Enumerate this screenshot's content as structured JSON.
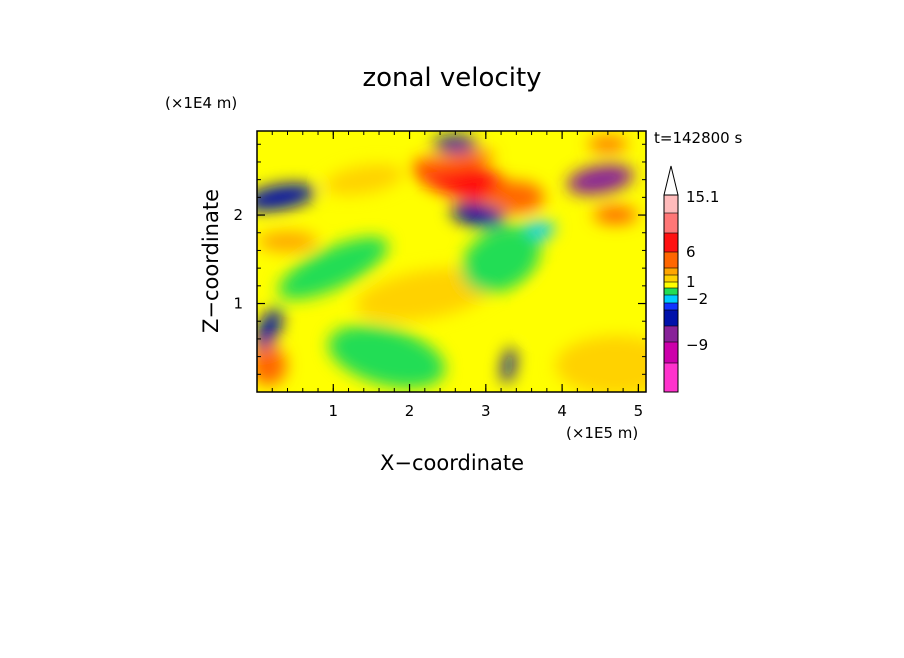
{
  "chart_data": {
    "type": "heatmap",
    "title": "zonal velocity",
    "xlabel": "X−coordinate",
    "ylabel": "Z−coordinate",
    "x_unit": "(×1E5 m)",
    "y_unit": "(×1E4 m)",
    "time_label": "t=142800 s",
    "xlim": [
      0,
      5.1
    ],
    "ylim": [
      0,
      2.95
    ],
    "x_ticks": [
      1,
      2,
      3,
      4,
      5
    ],
    "y_ticks": [
      1,
      2
    ],
    "colorbar": {
      "levels": [
        -15,
        -12,
        -9,
        -6,
        -3,
        -2,
        -1,
        0,
        1,
        2,
        3,
        6,
        9,
        12,
        15.1
      ],
      "labels": [
        "15.1",
        "6",
        "1",
        "−2",
        "−9"
      ],
      "colors": [
        "#ff33cc",
        "#cc00aa",
        "#882299",
        "#0011aa",
        "#1133ff",
        "#00ccff",
        "#22dd55",
        "#ffff00",
        "#ffd200",
        "#ffa500",
        "#ff6600",
        "#ff1111",
        "#ff7777",
        "#ffbbbb"
      ],
      "extend_top": true
    },
    "features": [
      {
        "x": 0.3,
        "z": 2.2,
        "value": -4
      },
      {
        "x": 0.4,
        "z": 1.7,
        "value": 2
      },
      {
        "x": 1.4,
        "z": 2.4,
        "value": 1.5
      },
      {
        "x": 2.7,
        "z": 2.4,
        "value": 8
      },
      {
        "x": 2.6,
        "z": 2.6,
        "value": 3
      },
      {
        "x": 2.6,
        "z": 2.8,
        "value": -4
      },
      {
        "x": 2.9,
        "z": 2.0,
        "value": -6
      },
      {
        "x": 4.5,
        "z": 2.4,
        "value": -8
      },
      {
        "x": 4.6,
        "z": 2.8,
        "value": 3
      },
      {
        "x": 4.7,
        "z": 2.0,
        "value": 3
      },
      {
        "x": 3.6,
        "z": 1.8,
        "value": -1.5
      },
      {
        "x": 3.4,
        "z": 2.2,
        "value": 3
      },
      {
        "x": 1.0,
        "z": 1.4,
        "value": -0.5
      },
      {
        "x": 2.2,
        "z": 1.1,
        "value": 1.5
      },
      {
        "x": 3.2,
        "z": 1.5,
        "value": -0.5
      },
      {
        "x": 4.3,
        "z": 1.0,
        "value": 0.5
      },
      {
        "x": 1.7,
        "z": 0.4,
        "value": -0.5
      },
      {
        "x": 4.7,
        "z": 0.3,
        "value": 1.5
      },
      {
        "x": 0.15,
        "z": 0.7,
        "value": -6
      },
      {
        "x": 0.15,
        "z": 0.3,
        "value": 3
      },
      {
        "x": 3.3,
        "z": 0.3,
        "value": -6
      }
    ]
  }
}
